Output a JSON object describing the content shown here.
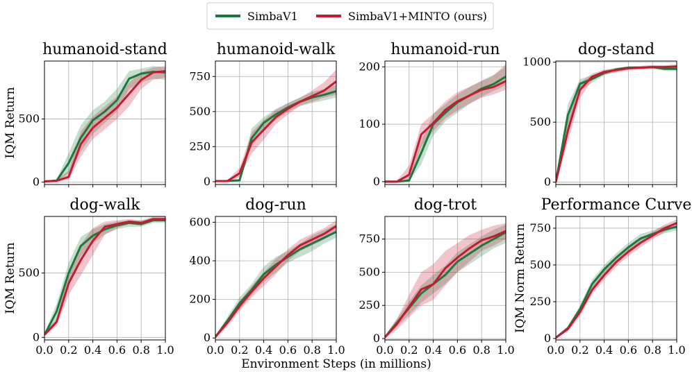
{
  "colors": {
    "simba": "#1a7a3e",
    "minto": "#c8192e"
  },
  "legend": {
    "series_a": "SimbaV1",
    "series_b": "SimbaV1+MINTO (ours)"
  },
  "xlabel": "Environment Steps (in millions)",
  "chart_data": [
    {
      "type": "line",
      "title": "humanoid-stand",
      "ylabel": "IQM Return",
      "xlim": [
        0,
        1
      ],
      "ylim": [
        -20,
        960
      ],
      "yticks": [
        0,
        500
      ],
      "x": [
        0,
        0.1,
        0.2,
        0.3,
        0.4,
        0.5,
        0.6,
        0.7,
        0.8,
        0.9,
        1.0
      ],
      "series": [
        {
          "name": "SimbaV1",
          "values": [
            5,
            10,
            150,
            350,
            490,
            560,
            650,
            820,
            860,
            875,
            870
          ],
          "lower": [
            0,
            0,
            70,
            240,
            380,
            470,
            560,
            740,
            790,
            820,
            810
          ],
          "upper": [
            10,
            20,
            230,
            450,
            570,
            640,
            740,
            880,
            900,
            920,
            910
          ]
        },
        {
          "name": "SimbaV1+MINTO (ours)",
          "values": [
            5,
            10,
            40,
            300,
            430,
            510,
            590,
            700,
            810,
            870,
            880
          ],
          "lower": [
            0,
            0,
            20,
            200,
            340,
            420,
            500,
            600,
            740,
            810,
            830
          ],
          "upper": [
            10,
            20,
            90,
            400,
            520,
            600,
            680,
            790,
            870,
            910,
            920
          ]
        }
      ]
    },
    {
      "type": "line",
      "title": "humanoid-walk",
      "ylabel": "",
      "xlim": [
        0,
        1
      ],
      "ylim": [
        -20,
        860
      ],
      "yticks": [
        0,
        250,
        500,
        750
      ],
      "x": [
        0,
        0.1,
        0.2,
        0.3,
        0.4,
        0.5,
        0.6,
        0.7,
        0.8,
        0.9,
        1.0
      ],
      "series": [
        {
          "name": "SimbaV1",
          "values": [
            5,
            5,
            10,
            310,
            420,
            480,
            530,
            570,
            600,
            620,
            645
          ],
          "lower": [
            0,
            0,
            5,
            250,
            370,
            440,
            500,
            540,
            560,
            580,
            600
          ],
          "upper": [
            10,
            10,
            20,
            380,
            460,
            520,
            560,
            600,
            640,
            660,
            690
          ]
        },
        {
          "name": "SimbaV1+MINTO (ours)",
          "values": [
            5,
            5,
            60,
            280,
            370,
            460,
            520,
            570,
            610,
            650,
            715
          ],
          "lower": [
            0,
            0,
            30,
            200,
            300,
            410,
            480,
            540,
            570,
            600,
            620
          ],
          "upper": [
            10,
            10,
            100,
            350,
            440,
            510,
            560,
            600,
            650,
            710,
            800
          ]
        }
      ]
    },
    {
      "type": "line",
      "title": "humanoid-run",
      "ylabel": "",
      "xlim": [
        0,
        1
      ],
      "ylim": [
        -5,
        210
      ],
      "yticks": [
        0,
        100,
        200
      ],
      "x": [
        0,
        0.1,
        0.2,
        0.3,
        0.4,
        0.5,
        0.6,
        0.7,
        0.8,
        0.9,
        1.0
      ],
      "series": [
        {
          "name": "SimbaV1",
          "values": [
            0,
            0,
            2,
            50,
            100,
            120,
            138,
            150,
            162,
            170,
            183
          ],
          "lower": [
            0,
            0,
            0,
            30,
            80,
            105,
            120,
            135,
            148,
            158,
            168
          ],
          "upper": [
            2,
            2,
            5,
            70,
            118,
            135,
            152,
            165,
            176,
            186,
            200
          ]
        },
        {
          "name": "SimbaV1+MINTO (ours)",
          "values": [
            0,
            0,
            12,
            82,
            102,
            125,
            140,
            150,
            160,
            165,
            175
          ],
          "lower": [
            0,
            0,
            2,
            60,
            88,
            110,
            124,
            136,
            146,
            152,
            160
          ],
          "upper": [
            2,
            2,
            28,
            100,
            118,
            140,
            156,
            165,
            175,
            185,
            205
          ]
        }
      ]
    },
    {
      "type": "line",
      "title": "dog-stand",
      "ylabel": "",
      "xlim": [
        0,
        1
      ],
      "ylim": [
        -20,
        1010
      ],
      "yticks": [
        0,
        500,
        1000
      ],
      "x": [
        0,
        0.1,
        0.2,
        0.3,
        0.4,
        0.5,
        0.6,
        0.7,
        0.8,
        0.9,
        1.0
      ],
      "series": [
        {
          "name": "SimbaV1",
          "values": [
            0,
            560,
            820,
            860,
            910,
            940,
            955,
            955,
            960,
            945,
            945
          ],
          "lower": [
            0,
            460,
            760,
            830,
            890,
            920,
            940,
            940,
            945,
            930,
            930
          ],
          "upper": [
            10,
            650,
            860,
            890,
            930,
            955,
            965,
            965,
            970,
            960,
            960
          ]
        },
        {
          "name": "SimbaV1+MINTO (ours)",
          "values": [
            0,
            430,
            770,
            880,
            920,
            935,
            950,
            955,
            960,
            960,
            965
          ],
          "lower": [
            0,
            340,
            700,
            850,
            900,
            915,
            935,
            940,
            945,
            945,
            950
          ],
          "upper": [
            10,
            520,
            830,
            905,
            940,
            950,
            965,
            970,
            975,
            975,
            980
          ]
        }
      ]
    },
    {
      "type": "line",
      "title": "dog-walk",
      "ylabel": "IQM Return",
      "xlim": [
        0,
        1
      ],
      "ylim": [
        -20,
        940
      ],
      "yticks": [
        0,
        500
      ],
      "x": [
        0,
        0.1,
        0.2,
        0.3,
        0.4,
        0.5,
        0.6,
        0.7,
        0.8,
        0.9,
        1.0
      ],
      "series": [
        {
          "name": "SimbaV1",
          "values": [
            20,
            200,
            500,
            710,
            790,
            840,
            870,
            890,
            880,
            910,
            910
          ],
          "lower": [
            10,
            150,
            420,
            630,
            730,
            800,
            840,
            860,
            860,
            890,
            890
          ],
          "upper": [
            30,
            260,
            580,
            780,
            840,
            880,
            900,
            910,
            905,
            930,
            930
          ]
        },
        {
          "name": "SimbaV1+MINTO (ours)",
          "values": [
            20,
            120,
            420,
            600,
            750,
            860,
            880,
            900,
            890,
            920,
            920
          ],
          "lower": [
            10,
            90,
            330,
            480,
            640,
            800,
            850,
            880,
            870,
            900,
            900
          ],
          "upper": [
            30,
            150,
            510,
            720,
            850,
            900,
            910,
            920,
            910,
            940,
            940
          ]
        }
      ]
    },
    {
      "type": "line",
      "title": "dog-run",
      "ylabel": "",
      "xlim": [
        0,
        1
      ],
      "ylim": [
        -10,
        630
      ],
      "yticks": [
        0,
        200,
        400,
        600
      ],
      "x": [
        0,
        0.1,
        0.2,
        0.3,
        0.4,
        0.5,
        0.6,
        0.7,
        0.8,
        0.9,
        1.0
      ],
      "series": [
        {
          "name": "SimbaV1",
          "values": [
            5,
            90,
            180,
            250,
            330,
            380,
            420,
            460,
            490,
            520,
            550
          ],
          "lower": [
            0,
            70,
            150,
            220,
            290,
            340,
            390,
            420,
            450,
            490,
            520
          ],
          "upper": [
            10,
            110,
            210,
            280,
            370,
            420,
            450,
            490,
            530,
            560,
            590
          ]
        },
        {
          "name": "SimbaV1+MINTO (ours)",
          "values": [
            5,
            80,
            165,
            240,
            310,
            370,
            430,
            480,
            510,
            540,
            580
          ],
          "lower": [
            0,
            60,
            140,
            210,
            270,
            330,
            400,
            450,
            480,
            510,
            550
          ],
          "upper": [
            10,
            100,
            190,
            270,
            340,
            410,
            460,
            510,
            540,
            570,
            610
          ]
        }
      ]
    },
    {
      "type": "line",
      "title": "dog-trot",
      "ylabel": "",
      "xlim": [
        0,
        1
      ],
      "ylim": [
        -10,
        920
      ],
      "yticks": [
        0,
        250,
        500,
        750
      ],
      "x": [
        0,
        0.1,
        0.2,
        0.3,
        0.4,
        0.5,
        0.6,
        0.7,
        0.8,
        0.9,
        1.0
      ],
      "series": [
        {
          "name": "SimbaV1",
          "values": [
            10,
            120,
            230,
            340,
            410,
            480,
            580,
            640,
            700,
            750,
            800
          ],
          "lower": [
            0,
            90,
            180,
            270,
            340,
            410,
            500,
            560,
            620,
            680,
            720
          ],
          "upper": [
            20,
            150,
            280,
            400,
            480,
            550,
            650,
            710,
            770,
            820,
            860
          ]
        },
        {
          "name": "SimbaV1+MINTO (ours)",
          "values": [
            10,
            110,
            240,
            370,
            410,
            530,
            610,
            680,
            740,
            770,
            810
          ],
          "lower": [
            0,
            70,
            160,
            250,
            290,
            400,
            500,
            580,
            660,
            700,
            750
          ],
          "upper": [
            20,
            150,
            330,
            500,
            560,
            660,
            720,
            780,
            820,
            850,
            870
          ]
        }
      ]
    },
    {
      "type": "line",
      "title": "Performance Curve",
      "ylabel": "IQM Norm Return",
      "xlim": [
        0,
        1
      ],
      "ylim": [
        -10,
        830
      ],
      "yticks": [
        0,
        250,
        500,
        750
      ],
      "x": [
        0,
        0.1,
        0.2,
        0.3,
        0.4,
        0.5,
        0.6,
        0.7,
        0.8,
        0.9,
        1.0
      ],
      "series": [
        {
          "name": "SimbaV1",
          "values": [
            5,
            70,
            200,
            370,
            470,
            550,
            620,
            680,
            710,
            740,
            760
          ],
          "lower": [
            0,
            55,
            175,
            340,
            440,
            520,
            590,
            650,
            685,
            715,
            735
          ],
          "upper": [
            10,
            85,
            225,
            400,
            500,
            580,
            650,
            710,
            735,
            765,
            785
          ]
        },
        {
          "name": "SimbaV1+MINTO (ours)",
          "values": [
            5,
            65,
            180,
            330,
            430,
            520,
            590,
            650,
            700,
            750,
            785
          ],
          "lower": [
            0,
            50,
            155,
            300,
            400,
            490,
            560,
            620,
            675,
            725,
            760
          ],
          "upper": [
            10,
            80,
            205,
            360,
            460,
            550,
            620,
            680,
            725,
            775,
            810
          ]
        }
      ]
    }
  ],
  "xticks": [
    {
      "v": 0.0,
      "label": "0.0"
    },
    {
      "v": 0.2,
      "label": "0.2"
    },
    {
      "v": 0.4,
      "label": "0.4"
    },
    {
      "v": 0.6,
      "label": "0.6"
    },
    {
      "v": 0.8,
      "label": "0.8"
    },
    {
      "v": 1.0,
      "label": "1.0"
    }
  ]
}
